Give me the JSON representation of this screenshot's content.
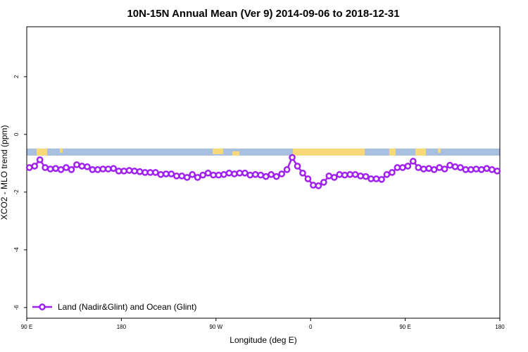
{
  "chart_data": {
    "type": "line",
    "title": "10N-15N Annual Mean (Ver 9)   2014-09-06 to 2018-12-31",
    "x_label": "Longitude (deg E)",
    "y_label": "XCO2 - MLO trend (ppm)",
    "xlim": [
      90,
      540
    ],
    "ylim": [
      -6.37,
      3.73
    ],
    "xticks": [
      {
        "value": 90,
        "label": "90 E"
      },
      180,
      {
        "value": 270,
        "label": "90 W"
      },
      {
        "value": 360,
        "label": "0"
      },
      {
        "value": 450,
        "label": "90 E"
      },
      {
        "value": 540,
        "label": "180"
      }
    ],
    "yticks": [
      -6,
      -4,
      -2,
      0,
      2
    ],
    "legend": "bottom-left",
    "x": [
      92.5,
      97.5,
      102.5,
      107.5,
      112.5,
      117.5,
      122.5,
      127.5,
      132.5,
      137.5,
      142.5,
      147.5,
      152.5,
      157.5,
      162.5,
      167.5,
      172.5,
      177.5,
      182.5,
      187.5,
      192.5,
      197.5,
      202.5,
      207.5,
      212.5,
      217.5,
      222.5,
      227.5,
      232.5,
      237.5,
      242.5,
      247.5,
      252.5,
      257.5,
      262.5,
      267.5,
      272.5,
      277.5,
      282.5,
      287.5,
      292.5,
      297.5,
      302.5,
      307.5,
      312.5,
      317.5,
      322.5,
      327.5,
      332.5,
      337.5,
      342.5,
      347.5,
      352.5,
      357.5,
      362.5,
      367.5,
      372.5,
      377.5,
      382.5,
      387.5,
      392.5,
      397.5,
      402.5,
      407.5,
      412.5,
      417.5,
      422.5,
      427.5,
      432.5,
      437.5,
      442.5,
      447.5,
      452.5,
      457.5,
      462.5,
      467.5,
      472.5,
      477.5,
      482.5,
      487.5,
      492.5,
      497.5,
      502.5,
      507.5,
      512.5,
      517.5,
      522.5,
      527.5,
      532.5,
      537.5
    ],
    "series": [
      {
        "name": "Land (Nadir&Glint) and Ocean (Glint)",
        "color": "#a020f0",
        "values": [
          -1.15,
          -1.1,
          -0.88,
          -1.15,
          -1.2,
          -1.18,
          -1.22,
          -1.15,
          -1.22,
          -1.05,
          -1.1,
          -1.12,
          -1.22,
          -1.22,
          -1.2,
          -1.2,
          -1.18,
          -1.27,
          -1.27,
          -1.25,
          -1.27,
          -1.29,
          -1.32,
          -1.32,
          -1.32,
          -1.39,
          -1.37,
          -1.37,
          -1.44,
          -1.44,
          -1.49,
          -1.39,
          -1.49,
          -1.41,
          -1.34,
          -1.41,
          -1.41,
          -1.39,
          -1.34,
          -1.37,
          -1.34,
          -1.34,
          -1.41,
          -1.39,
          -1.41,
          -1.46,
          -1.39,
          -1.46,
          -1.37,
          -1.22,
          -0.8,
          -1.1,
          -1.34,
          -1.54,
          -1.76,
          -1.78,
          -1.66,
          -1.44,
          -1.49,
          -1.39,
          -1.41,
          -1.39,
          -1.39,
          -1.44,
          -1.46,
          -1.54,
          -1.54,
          -1.56,
          -1.39,
          -1.32,
          -1.15,
          -1.15,
          -1.1,
          -0.93,
          -1.15,
          -1.2,
          -1.18,
          -1.22,
          -1.15,
          -1.2,
          -1.07,
          -1.12,
          -1.15,
          -1.22,
          -1.22,
          -1.2,
          -1.22,
          -1.18,
          -1.22,
          -1.27
        ]
      }
    ]
  }
}
